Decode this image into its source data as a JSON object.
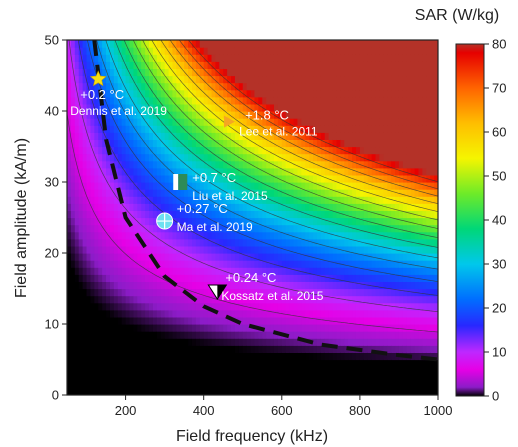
{
  "chart_data": {
    "type": "heatmap",
    "title": "",
    "xlabel": "Field frequency (kHz)",
    "ylabel": "Field amplitude (kA/m)",
    "xlim": [
      50,
      1000
    ],
    "ylim": [
      0,
      50
    ],
    "x_ticks": [
      200,
      400,
      600,
      800,
      1000
    ],
    "y_ticks": [
      0,
      10,
      20,
      30,
      40,
      50
    ],
    "x_tick_labels": [
      "200",
      "400",
      "600",
      "800",
      "1000"
    ],
    "y_tick_labels": [
      "0",
      "10",
      "20",
      "30",
      "40",
      "50"
    ],
    "colorbar": {
      "label": "SAR (W/kg)",
      "ticks": [
        0,
        10,
        20,
        30,
        40,
        50,
        60,
        70,
        80
      ],
      "tick_labels": [
        "0",
        "10",
        "20",
        "30",
        "40",
        "50",
        "60",
        "70",
        "80"
      ],
      "range": [
        0,
        80
      ]
    },
    "safety_limit_curve": {
      "style": "dashed",
      "points": [
        [
          120,
          50
        ],
        [
          150,
          36
        ],
        [
          200,
          25
        ],
        [
          300,
          16.7
        ],
        [
          400,
          12.5
        ],
        [
          500,
          10
        ],
        [
          700,
          7.1
        ],
        [
          900,
          5.6
        ],
        [
          1000,
          5
        ]
      ]
    },
    "contour_levels": [
      5,
      10,
      15,
      20,
      25,
      30,
      35,
      40,
      45,
      50,
      55,
      60,
      65,
      70,
      75
    ],
    "markers": [
      {
        "name": "Dennis et al. 2019",
        "temp": "+0.2 °C",
        "x": 130,
        "y": 44.5,
        "shape": "star",
        "color": "#f7e014"
      },
      {
        "name": "Lee et al. 2011",
        "temp": "+1.8 °C",
        "x": 465,
        "y": 38.5,
        "shape": "triangle-right",
        "color": "#f5a623"
      },
      {
        "name": "Liu et al. 2015",
        "temp": "+0.7 °C",
        "x": 340,
        "y": 30,
        "shape": "flag",
        "color": "#2e8b57"
      },
      {
        "name": "Ma et al. 2019",
        "temp": "+0.27 °C",
        "x": 300,
        "y": 24.5,
        "shape": "crosshair-circle",
        "color": "#6ee0f0"
      },
      {
        "name": "Kossatz et al. 2015",
        "temp": "+0.24 °C",
        "x": 435,
        "y": 14.5,
        "shape": "triangle-down",
        "color": "#ffffff"
      }
    ]
  }
}
